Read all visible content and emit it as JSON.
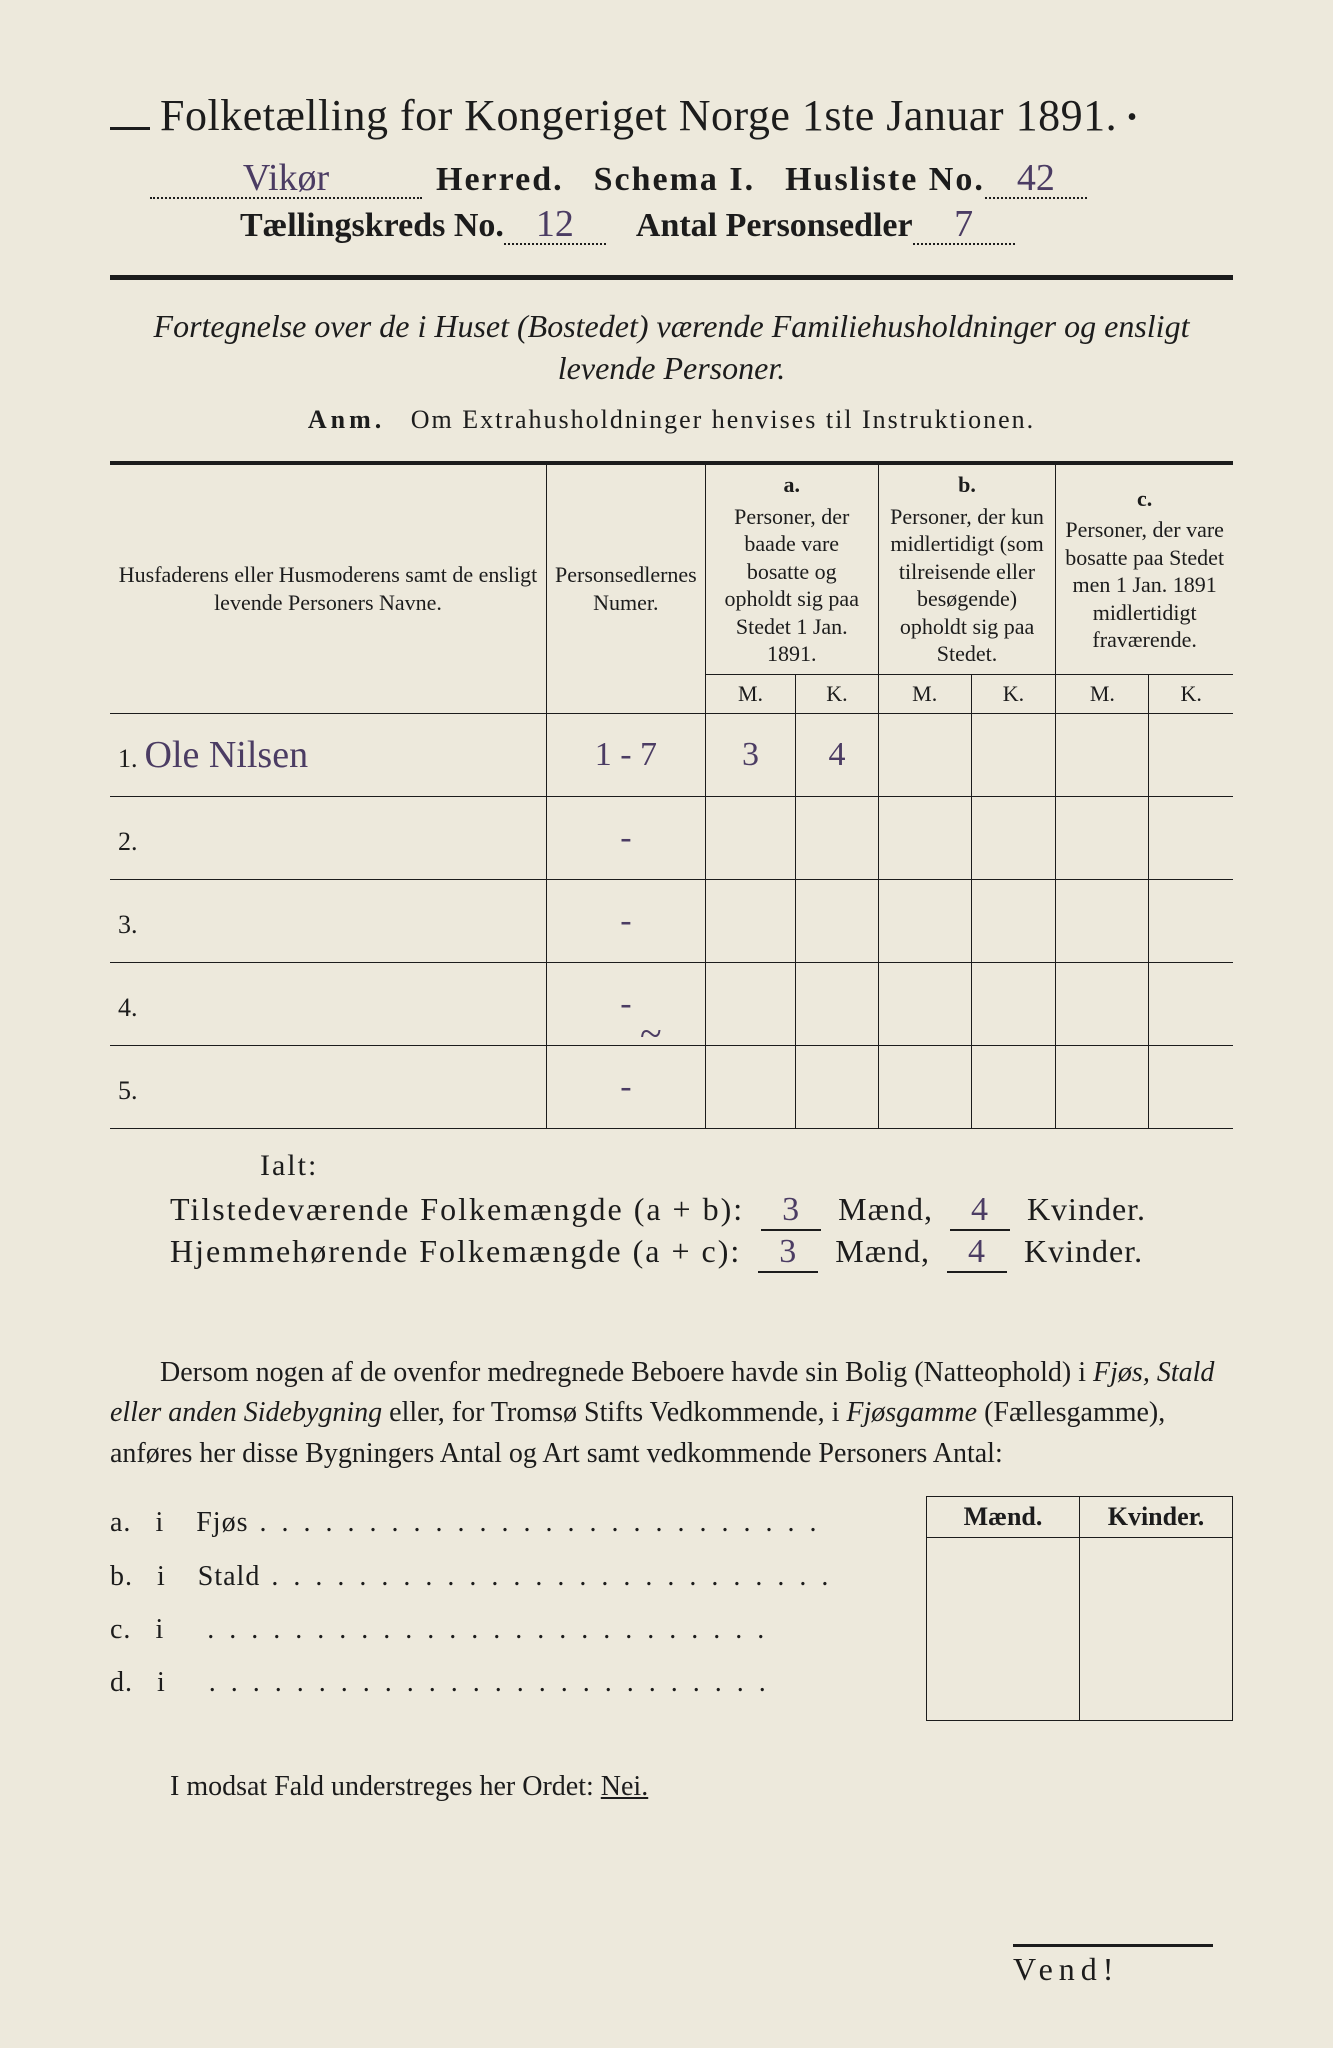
{
  "colors": {
    "page_bg": "#ede9dc",
    "outer_bg": "#d7d6cf",
    "ink": "#1c1c1c",
    "handwriting": "#4b3c63"
  },
  "header": {
    "title": "Folketælling for Kongeriget Norge 1ste Januar 1891.",
    "herred_label": "Herred.",
    "schema_label": "Schema I.",
    "husliste_label": "Husliste No.",
    "kreds_label": "Tællingskreds No.",
    "antal_label": "Antal Personsedler",
    "herred_value": "Vikør",
    "husliste_value": "42",
    "kreds_value": "12",
    "antal_value": "7"
  },
  "subtitle": "Fortegnelse over de i Huset (Bostedet) værende Familiehusholdninger og ensligt levende Personer.",
  "anm": {
    "label": "Anm.",
    "text": "Om Extrahusholdninger henvises til Instruktionen."
  },
  "table": {
    "col_names": {
      "names": "Husfaderens eller Husmoderens samt de ensligt levende Personers Navne.",
      "numer": "Personsedlernes Numer.",
      "a": "Personer, der baade vare bosatte og opholdt sig paa Stedet 1 Jan. 1891.",
      "b": "Personer, der kun midlertidigt (som tilreisende eller besøgende) opholdt sig paa Stedet.",
      "c": "Personer, der vare bosatte paa Stedet men 1 Jan. 1891 midlertidigt fraværende.",
      "a_letter": "a.",
      "b_letter": "b.",
      "c_letter": "c."
    },
    "mk": {
      "m": "M.",
      "k": "K."
    },
    "rows": [
      {
        "n": "1.",
        "name": "Ole Nilsen",
        "numer": "1 - 7",
        "a_m": "3",
        "a_k": "4",
        "b_m": "",
        "b_k": "",
        "c_m": "",
        "c_k": ""
      },
      {
        "n": "2.",
        "name": "",
        "numer": "-",
        "a_m": "",
        "a_k": "",
        "b_m": "",
        "b_k": "",
        "c_m": "",
        "c_k": ""
      },
      {
        "n": "3.",
        "name": "",
        "numer": "-",
        "a_m": "",
        "a_k": "",
        "b_m": "",
        "b_k": "",
        "c_m": "",
        "c_k": ""
      },
      {
        "n": "4.",
        "name": "",
        "numer": "-",
        "a_m": "",
        "a_k": "",
        "b_m": "",
        "b_k": "",
        "c_m": "",
        "c_k": ""
      },
      {
        "n": "5.",
        "name": "",
        "numer": "-",
        "a_m": "",
        "a_k": "",
        "b_m": "",
        "b_k": "",
        "c_m": "",
        "c_k": ""
      }
    ]
  },
  "ialt": "Ialt:",
  "sums": {
    "line1": {
      "label": "Tilstedeværende Folkemængde (a + b):",
      "m": "3",
      "k": "4",
      "m_word": "Mænd,",
      "k_word": "Kvinder."
    },
    "line2": {
      "label": "Hjemmehørende Folkemængde (a + c):",
      "m": "3",
      "k": "4",
      "m_word": "Mænd,",
      "k_word": "Kvinder."
    }
  },
  "paragraph": "Dersom nogen af de ovenfor medregnede Beboere havde sin Bolig (Natteophold) i Fjøs, Stald eller anden Sidebygning eller, for Tromsø Stifts Vedkommende, i Fjøsgamme (Fællesgamme), anføres her disse Bygningers Antal og Art samt vedkommende Personers Antal:",
  "side": {
    "items": [
      {
        "id": "a.",
        "pre": "i",
        "label": "Fjøs"
      },
      {
        "id": "b.",
        "pre": "i",
        "label": "Stald"
      },
      {
        "id": "c.",
        "pre": "i",
        "label": ""
      },
      {
        "id": "d.",
        "pre": "i",
        "label": ""
      }
    ],
    "cols": {
      "m": "Mænd.",
      "k": "Kvinder."
    }
  },
  "modsat": {
    "text": "I modsat Fald understreges her Ordet:",
    "nei": "Nei."
  },
  "vend": "Vend!"
}
